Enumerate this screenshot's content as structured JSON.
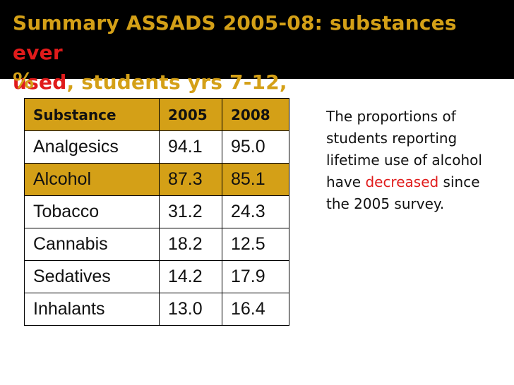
{
  "title": {
    "part1": "Summary ASSADS 2005-08: substances ",
    "highlight1": "ever",
    "highlight2": "used",
    "part2": ", students yrs 7-12,",
    "part3": "%"
  },
  "table": {
    "headers": [
      "Substance",
      "2005",
      "2008"
    ],
    "rows": [
      [
        "Analgesics",
        "94.1",
        "95.0"
      ],
      [
        "Alcohol",
        "87.3",
        "85.1"
      ],
      [
        "Tobacco",
        "31.2",
        "24.3"
      ],
      [
        "Cannabis",
        "18.2",
        "12.5"
      ],
      [
        "Sedatives",
        "14.2",
        "17.9"
      ],
      [
        "Inhalants",
        "13.0",
        "16.4"
      ]
    ],
    "highlighted_row": "Alcohol"
  },
  "note": {
    "before": "The proportions of students reporting lifetime use of alcohol have ",
    "emphasis": "decreased",
    "after": " since the 2005 survey."
  },
  "colors": {
    "title_bg": "#000000",
    "accent_gold": "#d4a017",
    "accent_red": "#e01b1b"
  }
}
